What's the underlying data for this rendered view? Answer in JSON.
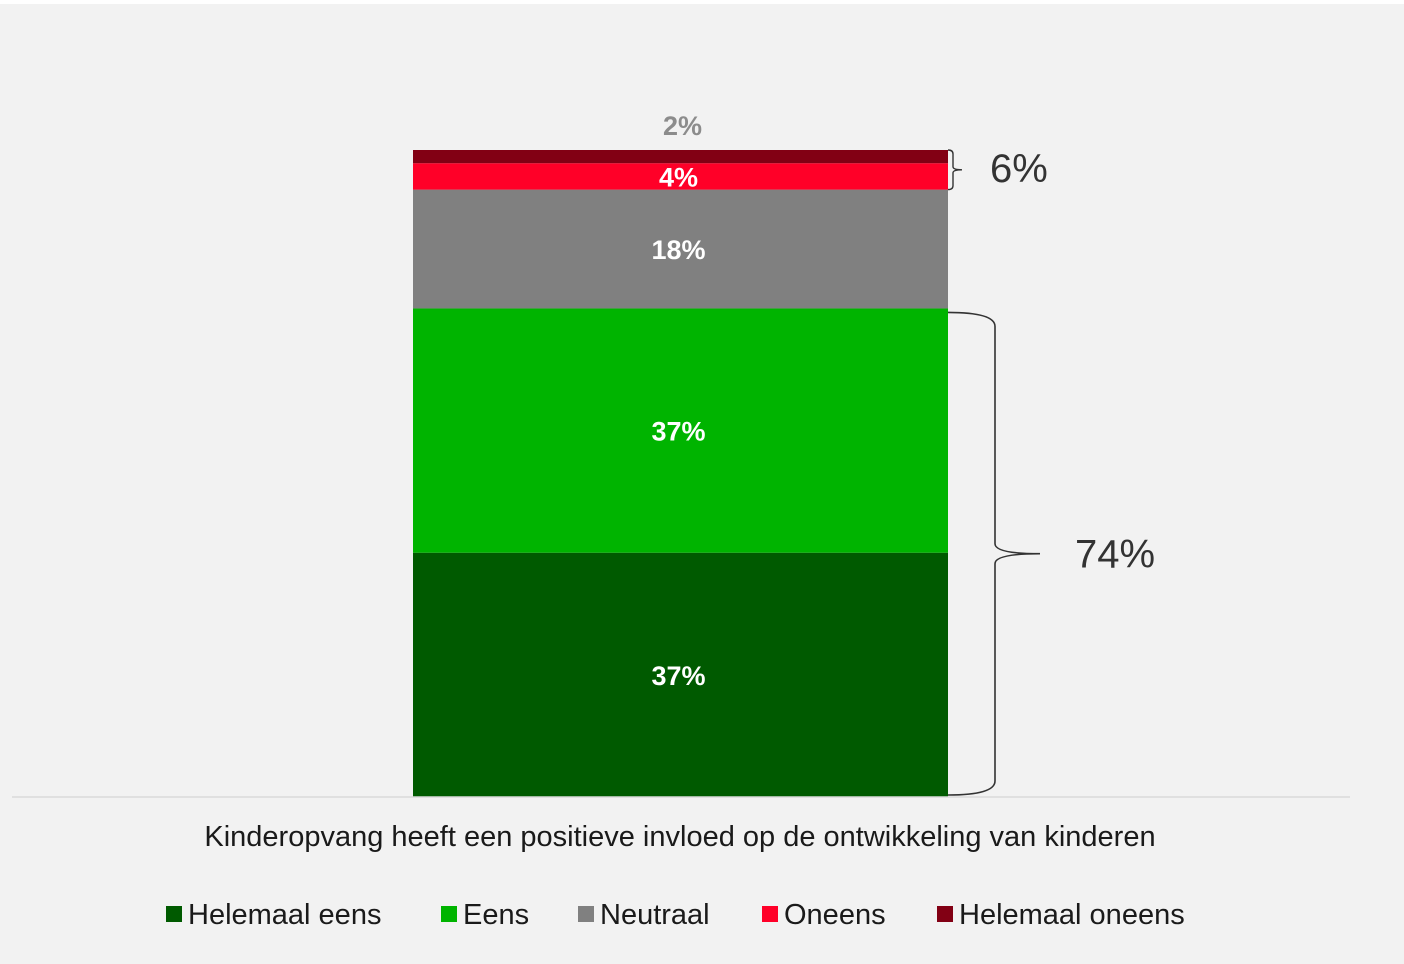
{
  "chart_data": {
    "type": "bar",
    "stacked": true,
    "percent": true,
    "title": "",
    "xlabel": "",
    "ylabel": "",
    "ylim": [
      0,
      100
    ],
    "grid": false,
    "legend_position": "bottom",
    "categories": [
      "Kinderopvang heeft een positieve invloed op de ontwikkeling van kinderen"
    ],
    "series": [
      {
        "name": "Helemaal eens",
        "values": [
          37
        ],
        "color": "#005a00",
        "label": "37%"
      },
      {
        "name": "Eens",
        "values": [
          37
        ],
        "color": "#00b400",
        "label": "37%"
      },
      {
        "name": "Neutraal",
        "values": [
          18
        ],
        "color": "#808080",
        "label": "18%"
      },
      {
        "name": "Oneens",
        "values": [
          4
        ],
        "color": "#ff0028",
        "label": "4%"
      },
      {
        "name": "Helemaal oneens",
        "values": [
          2
        ],
        "color": "#820014",
        "label": "2%"
      }
    ],
    "annotations": [
      {
        "text": "74%",
        "spans": [
          "Helemaal eens",
          "Eens"
        ]
      },
      {
        "text": "6%",
        "spans": [
          "Oneens",
          "Helemaal oneens"
        ]
      }
    ]
  }
}
